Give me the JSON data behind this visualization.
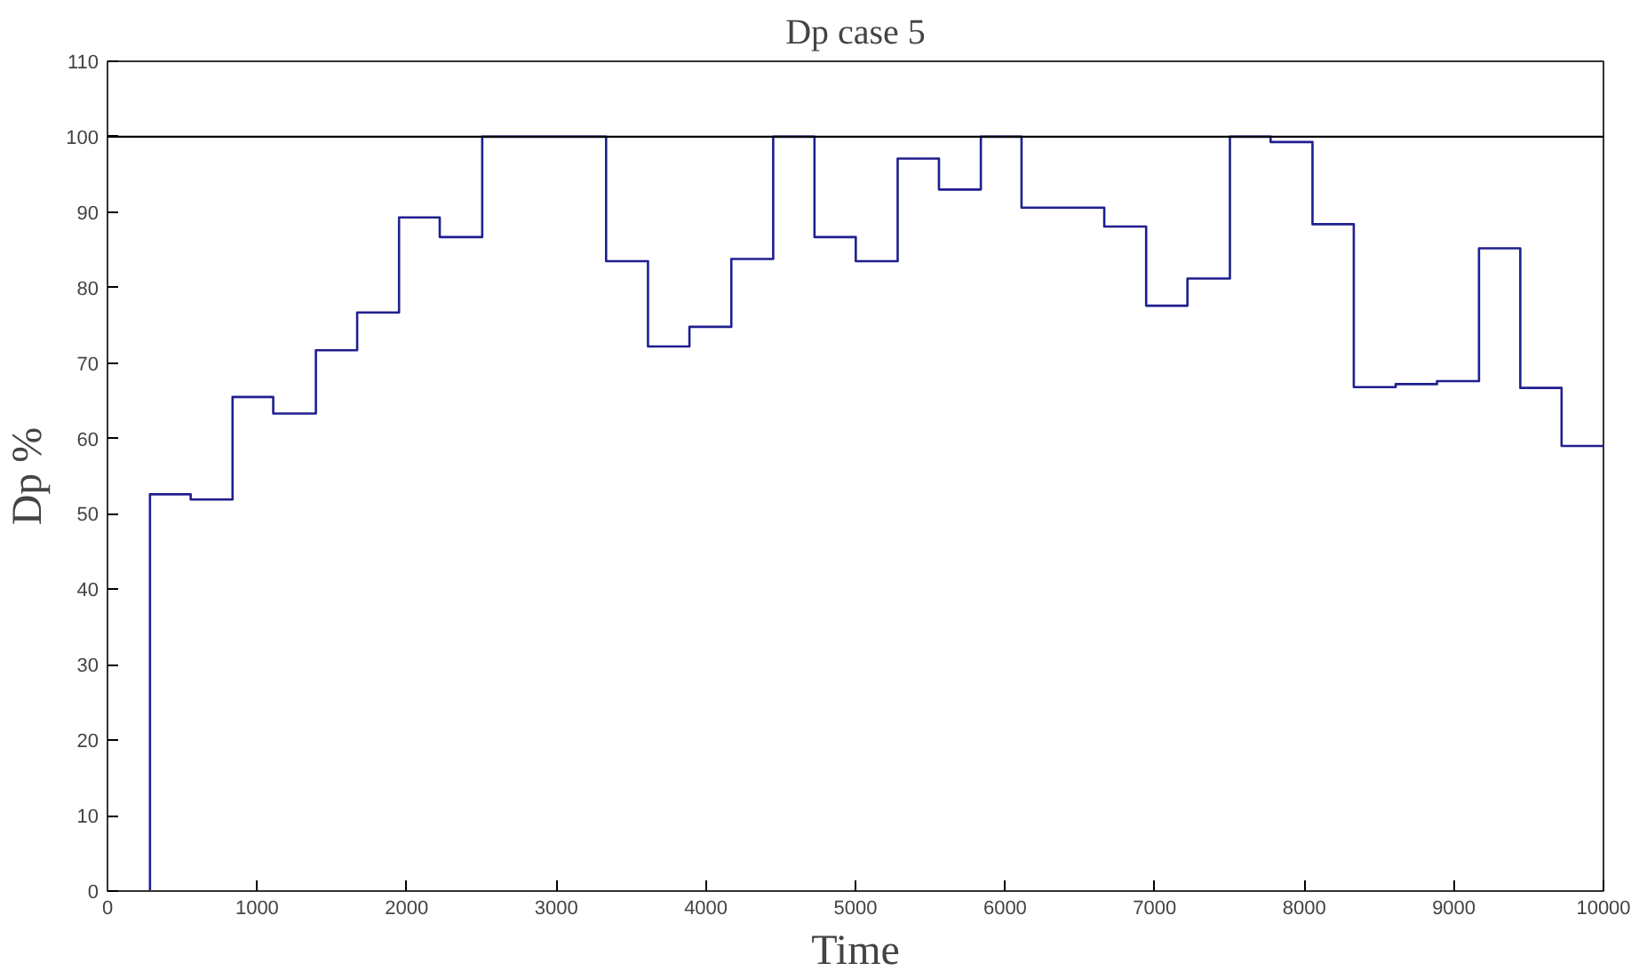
{
  "chart_data": {
    "type": "step",
    "title": "Dp case 5",
    "xlabel": "Time",
    "ylabel": "Dp %",
    "x": [
      284,
      284,
      556,
      836,
      1108,
      1393,
      1669,
      1949,
      2221,
      2505,
      3333,
      3613,
      3890,
      4170,
      4450,
      4726,
      5002,
      5282,
      5558,
      5838,
      6110,
      6663,
      6943,
      7219,
      7503,
      7775,
      8055,
      8331,
      8611,
      8887,
      9168,
      9444,
      9720,
      10000
    ],
    "series": [
      {
        "color": "#1f1f8f",
        "values": [
          0,
          52.6,
          51.9,
          65.5,
          63.3,
          71.7,
          76.7,
          89.3,
          86.7,
          100,
          83.5,
          72.2,
          74.8,
          83.8,
          100,
          86.7,
          83.5,
          97.1,
          93.0,
          100,
          90.6,
          88.1,
          77.6,
          81.2,
          100,
          99.3,
          88.4,
          66.8,
          67.2,
          67.6,
          85.2,
          66.7,
          59.0,
          59.0
        ]
      }
    ],
    "xlim": [
      0,
      10000
    ],
    "xticks": [
      0,
      1000,
      2000,
      3000,
      4000,
      5000,
      6000,
      7000,
      8000,
      9000,
      10000
    ],
    "ylim": [
      0,
      110
    ],
    "yticks": [
      0,
      10,
      20,
      30,
      40,
      50,
      60,
      70,
      80,
      90,
      100,
      110
    ],
    "ref_lines": [
      {
        "axis": "y",
        "value": 100,
        "color": "#000000"
      }
    ],
    "grid": false
  }
}
